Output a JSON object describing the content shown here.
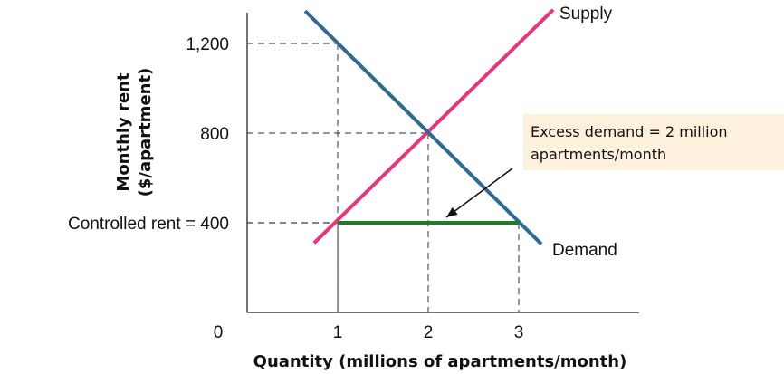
{
  "chart_data": {
    "type": "line",
    "xlabel": "Quantity (millions of apartments/month)",
    "ylabel_line1": "Monthly rent",
    "ylabel_line2": "($/apartment)",
    "origin_label": "0",
    "xlim": [
      0,
      4.4
    ],
    "ylim": [
      0,
      1380
    ],
    "x_ticks": [
      {
        "value": 1,
        "label": "1"
      },
      {
        "value": 2,
        "label": "2"
      },
      {
        "value": 3,
        "label": "3"
      }
    ],
    "y_ticks": [
      {
        "value": 1200,
        "label": "1,200"
      },
      {
        "value": 800,
        "label": "800"
      },
      {
        "value": 400,
        "label": "Controlled rent = 400"
      }
    ],
    "series": [
      {
        "name": "Supply",
        "color": "#e8347e",
        "points": [
          [
            0.74,
            310
          ],
          [
            3.38,
            1350
          ]
        ]
      },
      {
        "name": "Demand",
        "color": "#2e6b94",
        "points": [
          [
            0.64,
            1345
          ],
          [
            3.25,
            305
          ]
        ]
      }
    ],
    "guides": [
      {
        "x": 1,
        "y": 1200
      },
      {
        "x": 2,
        "y": 800
      },
      {
        "x": 1,
        "y": 400
      },
      {
        "x": 3,
        "y": 400
      }
    ],
    "excess_demand": {
      "x_from": 1,
      "x_to": 3,
      "y": 400,
      "color": "#1f7a2e"
    },
    "annotation": {
      "line1": "Excess demand = 2 million",
      "line2": "apartments/month",
      "box_color": "#fdf1de",
      "arrow_target": [
        2.2,
        400
      ]
    }
  }
}
